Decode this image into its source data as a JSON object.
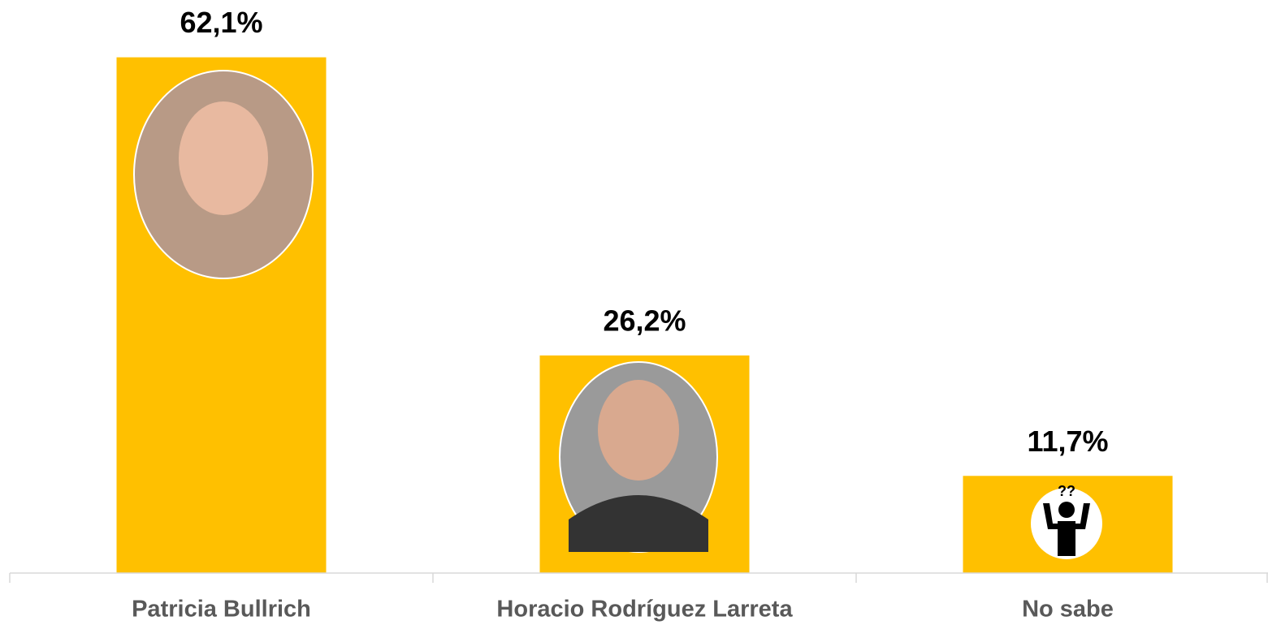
{
  "chart_data": {
    "type": "bar",
    "categories": [
      "Patricia Bullrich",
      "Horacio Rodríguez Larreta",
      "No sabe"
    ],
    "values": [
      62.1,
      26.2,
      11.7
    ],
    "value_labels": [
      "62,1%",
      "26,2%",
      "11,7%"
    ],
    "color": "#ffc000",
    "ylim": [
      0,
      69
    ]
  }
}
